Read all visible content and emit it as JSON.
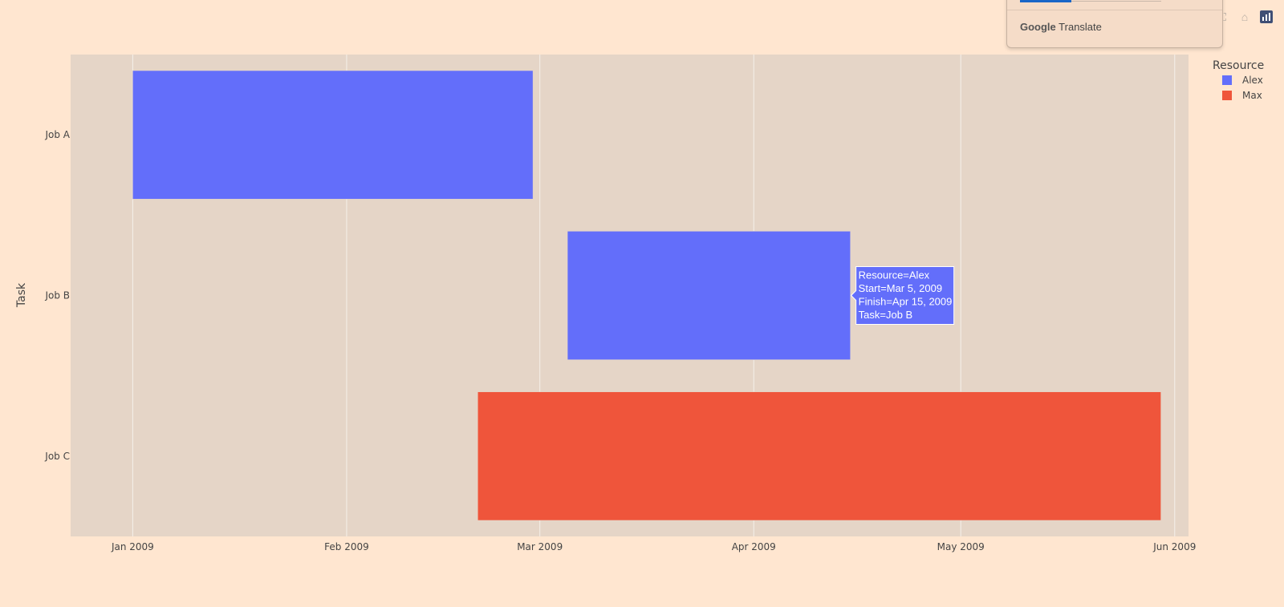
{
  "chart_data": {
    "type": "gantt",
    "x_ticks": [
      "Jan 2009",
      "Feb 2009",
      "Mar 2009",
      "Apr 2009",
      "May 2009",
      "Jun 2009"
    ],
    "y_categories": [
      "Job A",
      "Job B",
      "Job C"
    ],
    "yaxis_title": "Task",
    "legend_title": "Resource",
    "legend": [
      {
        "name": "Alex",
        "color": "#636efa"
      },
      {
        "name": "Max",
        "color": "#ef553b"
      }
    ],
    "tasks": [
      {
        "task": "Job A",
        "resource": "Alex",
        "start": "2009-01-01",
        "finish": "2009-02-28"
      },
      {
        "task": "Job B",
        "resource": "Alex",
        "start": "2009-03-05",
        "finish": "2009-04-15"
      },
      {
        "task": "Job C",
        "resource": "Max",
        "start": "2009-02-20",
        "finish": "2009-05-30"
      }
    ],
    "hover": {
      "task_index": 1,
      "lines": [
        "Resource=Alex",
        "Start=Mar 5, 2009",
        "Finish=Apr 15, 2009",
        "Task=Job B"
      ]
    }
  },
  "colors": {
    "paper_bg": "#ffe6d0",
    "plot_bg": "#e5d5c7",
    "grid": "#f5f0ea"
  },
  "translate_popup": {
    "brand_google": "Google",
    "brand_translate": "Translate"
  },
  "modebar": {
    "icons": [
      "autoscale-icon",
      "home-icon",
      "plotly-logo-icon"
    ]
  }
}
